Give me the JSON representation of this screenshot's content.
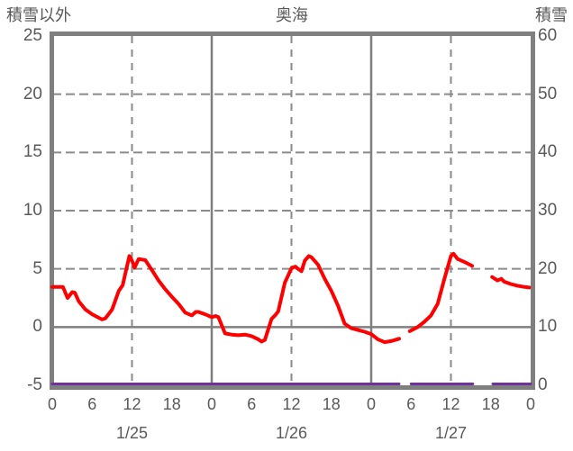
{
  "chart_data": {
    "type": "line",
    "title": "奥海",
    "left_axis": {
      "title": "積雪以外",
      "min": -5,
      "max": 25,
      "ticks": [
        25,
        20,
        15,
        10,
        5,
        0,
        -5
      ]
    },
    "right_axis": {
      "title": "積雪",
      "min": 0,
      "max": 60,
      "ticks": [
        60,
        50,
        40,
        30,
        20,
        10,
        0
      ]
    },
    "x_axis": {
      "total_hours": 72,
      "tick_step_hours": 6,
      "tick_labels": [
        "0",
        "6",
        "12",
        "18",
        "0",
        "6",
        "12",
        "18",
        "0",
        "6",
        "12",
        "18",
        "0"
      ],
      "day_labels": [
        "1/25",
        "1/26",
        "1/27"
      ],
      "solid_lines_hours": [
        24,
        48
      ],
      "dashed_lines_hours": [
        12,
        36,
        60
      ]
    },
    "grid": {
      "h_dashed_at_left_values": [
        20,
        15,
        10,
        5
      ],
      "zero_line_left_value": 0,
      "line_color": "#7f7f7f",
      "dash_color": "#8a8a8a"
    },
    "series": [
      {
        "name": "temperature-other-than-snow",
        "axis": "left",
        "color": "#fe0000",
        "width": 4,
        "segments": [
          [
            [
              0,
              3.45
            ],
            [
              1,
              3.45
            ],
            [
              1.6,
              3.45
            ],
            [
              2.3,
              2.5
            ],
            [
              3,
              3.0
            ],
            [
              3.4,
              2.95
            ],
            [
              4,
              2.2
            ],
            [
              5,
              1.5
            ],
            [
              6,
              1.1
            ],
            [
              7,
              0.8
            ],
            [
              7.5,
              0.65
            ],
            [
              8,
              0.75
            ],
            [
              9,
              1.5
            ],
            [
              10,
              3.1
            ],
            [
              10.6,
              3.6
            ],
            [
              11,
              4.6
            ],
            [
              11.6,
              6.1
            ],
            [
              12,
              5.7
            ],
            [
              12.4,
              5.1
            ],
            [
              13,
              5.85
            ],
            [
              14,
              5.75
            ],
            [
              15,
              4.9
            ],
            [
              16,
              4.0
            ],
            [
              17,
              3.25
            ],
            [
              18,
              2.6
            ],
            [
              19,
              2.0
            ],
            [
              20,
              1.25
            ],
            [
              21,
              1.0
            ],
            [
              21.6,
              1.3
            ],
            [
              22,
              1.3
            ],
            [
              23,
              1.1
            ],
            [
              24,
              0.85
            ],
            [
              24.6,
              0.95
            ],
            [
              25,
              0.85
            ],
            [
              26,
              -0.55
            ],
            [
              27,
              -0.65
            ],
            [
              28,
              -0.7
            ],
            [
              29,
              -0.65
            ],
            [
              30,
              -0.78
            ],
            [
              31,
              -1.05
            ],
            [
              31.5,
              -1.25
            ],
            [
              32,
              -1.1
            ],
            [
              33,
              0.7
            ],
            [
              33.6,
              1.05
            ],
            [
              34,
              1.35
            ],
            [
              35,
              3.8
            ],
            [
              36,
              5.05
            ],
            [
              36.6,
              5.2
            ],
            [
              37,
              5.0
            ],
            [
              37.5,
              4.8
            ],
            [
              38,
              5.7
            ],
            [
              38.6,
              6.1
            ],
            [
              39,
              6.0
            ],
            [
              40,
              5.35
            ],
            [
              41,
              4.15
            ],
            [
              42,
              3.1
            ],
            [
              43,
              1.85
            ],
            [
              44,
              0.3
            ],
            [
              45,
              -0.1
            ],
            [
              46,
              -0.25
            ],
            [
              47,
              -0.4
            ],
            [
              48,
              -0.6
            ],
            [
              49,
              -1.05
            ],
            [
              50,
              -1.3
            ],
            [
              51,
              -1.2
            ],
            [
              52.2,
              -1.0
            ]
          ],
          [
            [
              53.8,
              -0.35
            ],
            [
              55,
              0.0
            ],
            [
              56,
              0.45
            ],
            [
              57,
              1.0
            ],
            [
              58,
              2.0
            ],
            [
              59,
              4.1
            ],
            [
              60,
              6.1
            ],
            [
              60.4,
              6.3
            ],
            [
              61,
              5.85
            ],
            [
              62,
              5.6
            ],
            [
              63.2,
              5.25
            ]
          ],
          [
            [
              66.2,
              4.3
            ],
            [
              67,
              4.0
            ],
            [
              67.6,
              4.15
            ],
            [
              68,
              3.9
            ],
            [
              69,
              3.7
            ],
            [
              70,
              3.55
            ],
            [
              71,
              3.45
            ],
            [
              71.8,
              3.4
            ]
          ]
        ]
      },
      {
        "name": "snow-depth",
        "axis": "right",
        "color": "#7030a0",
        "width": 3,
        "segments": [
          [
            [
              0,
              0
            ],
            [
              52.2,
              0
            ]
          ],
          [
            [
              54,
              0
            ],
            [
              63.3,
              0
            ]
          ],
          [
            [
              66.3,
              0
            ],
            [
              72,
              0
            ]
          ]
        ]
      }
    ]
  }
}
